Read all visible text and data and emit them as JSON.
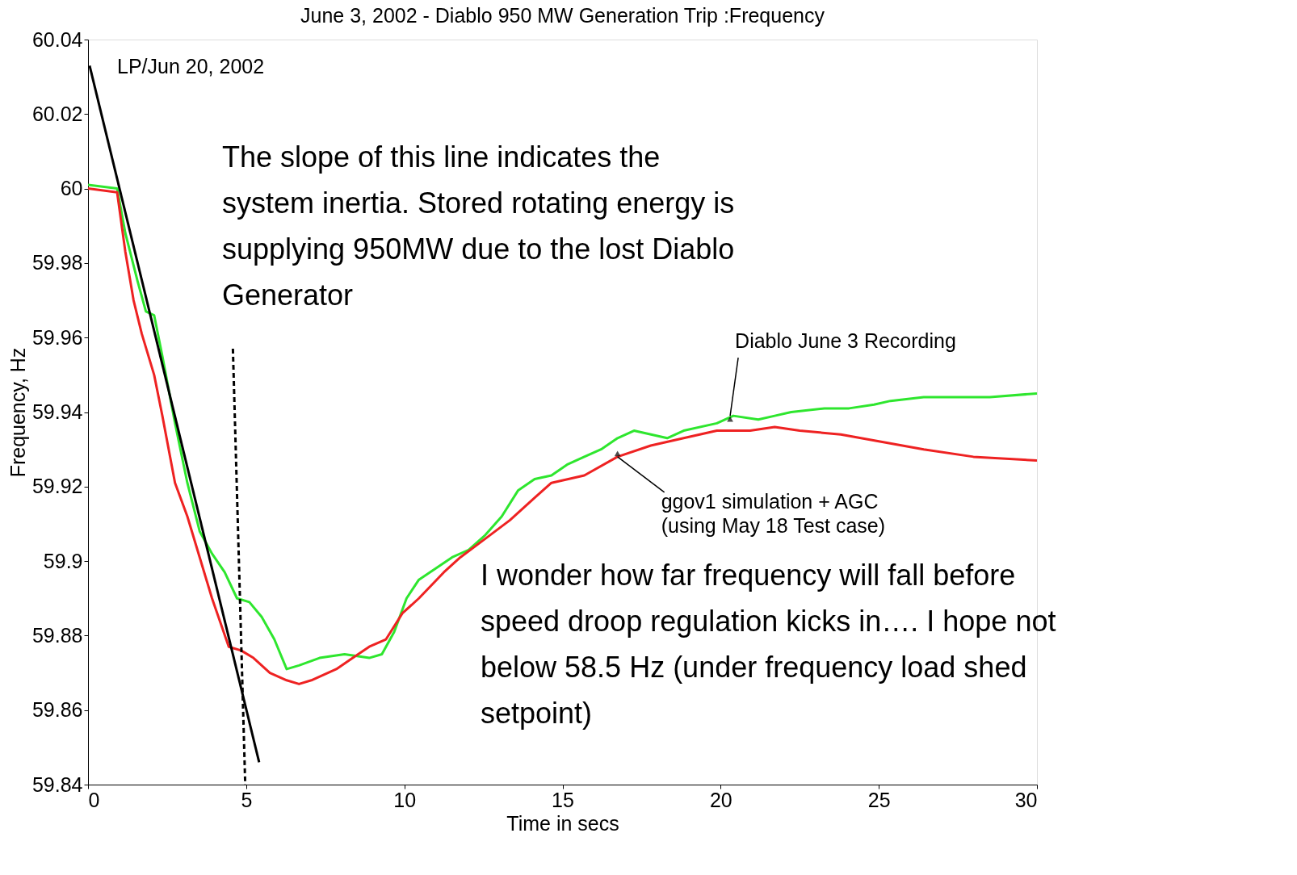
{
  "chart_data": {
    "type": "line",
    "title": "June 3, 2002 - Diablo 950 MW Generation Trip :Frequency",
    "xlabel": "Time in secs",
    "ylabel": "Frequency, Hz",
    "xlim": [
      0,
      30
    ],
    "ylim": [
      59.84,
      60.04
    ],
    "xticks": [
      0,
      5,
      10,
      15,
      20,
      25,
      30
    ],
    "yticks": [
      59.84,
      59.86,
      59.88,
      59.9,
      59.92,
      59.94,
      59.96,
      59.98,
      60,
      60.02,
      60.04
    ],
    "grid": false,
    "series": [
      {
        "color": "#2ee62e",
        "line_style": "solid",
        "x": [
          0,
          0.92,
          1.18,
          1.57,
          1.83,
          2.09,
          2.35,
          2.75,
          3.14,
          3.53,
          3.92,
          4.32,
          4.71,
          5.1,
          5.49,
          5.89,
          6.28,
          6.67,
          7.32,
          8.11,
          8.89,
          9.29,
          9.68,
          10.07,
          10.46,
          10.99,
          11.51,
          12.03,
          12.56,
          13.08,
          13.6,
          14.12,
          14.65,
          15.17,
          15.69,
          16.22,
          16.74,
          17.26,
          18.31,
          18.83,
          19.88,
          20.4,
          21.19,
          21.71,
          22.23,
          23.28,
          24.06,
          24.85,
          25.37,
          26.42,
          27.47,
          28.51,
          30
        ],
        "values": [
          60.001,
          60.0,
          59.988,
          59.975,
          59.967,
          59.966,
          59.955,
          59.937,
          59.921,
          59.908,
          59.902,
          59.897,
          59.89,
          59.889,
          59.885,
          59.879,
          59.871,
          59.872,
          59.874,
          59.875,
          59.874,
          59.875,
          59.881,
          59.89,
          59.895,
          59.898,
          59.901,
          59.903,
          59.907,
          59.912,
          59.919,
          59.922,
          59.923,
          59.926,
          59.928,
          59.93,
          59.933,
          59.935,
          59.933,
          59.935,
          59.937,
          59.939,
          59.938,
          59.939,
          59.94,
          59.941,
          59.941,
          59.942,
          59.943,
          59.944,
          59.944,
          59.944,
          59.945
        ]
      },
      {
        "color": "#ee2222",
        "line_style": "solid",
        "x": [
          0,
          0.92,
          1.18,
          1.44,
          1.7,
          2.09,
          2.35,
          2.75,
          3.14,
          3.53,
          3.92,
          4.45,
          4.84,
          5.23,
          5.75,
          6.28,
          6.67,
          7.06,
          7.85,
          8.37,
          8.89,
          9.42,
          9.94,
          10.46,
          11.25,
          11.77,
          12.56,
          13.34,
          14.12,
          14.65,
          15.69,
          16.74,
          17.79,
          18.83,
          19.88,
          20.93,
          21.71,
          22.5,
          23.8,
          25.11,
          26.42,
          27.99,
          30
        ],
        "values": [
          60.0,
          59.999,
          59.983,
          59.97,
          59.961,
          59.95,
          59.939,
          59.921,
          59.912,
          59.901,
          59.89,
          59.877,
          59.876,
          59.874,
          59.87,
          59.868,
          59.867,
          59.868,
          59.871,
          59.874,
          59.877,
          59.879,
          59.886,
          59.89,
          59.897,
          59.901,
          59.906,
          59.911,
          59.917,
          59.921,
          59.923,
          59.928,
          59.931,
          59.933,
          59.935,
          59.935,
          59.936,
          59.935,
          59.934,
          59.932,
          59.93,
          59.928,
          59.927
        ]
      },
      {
        "color": "#000000",
        "line_style": "solid",
        "x": [
          0.05,
          5.41
        ],
        "values": [
          60.033,
          59.846
        ]
      },
      {
        "color": "#000000",
        "line_style": "dashed",
        "x": [
          4.58,
          4.97
        ],
        "values": [
          59.957,
          59.84
        ]
      }
    ],
    "annotations": [
      "LP/Jun 20, 2002",
      "The slope of this line indicates the\nsystem inertia.  Stored rotating energy is\nsupplying 950MW due to the lost Diablo\nGenerator",
      "I wonder how far frequency will fall before\nspeed droop regulation kicks in…. I hope not\nbelow 58.5 Hz (under frequency load shed\nsetpoint)",
      {
        "text": "Diablo June 3 Recording",
        "x": 20.3,
        "y": 59.939
      },
      {
        "text": "ggov1 simulation + AGC\n(using May 18 Test case)",
        "x": 16.74,
        "y": 59.928
      }
    ]
  }
}
